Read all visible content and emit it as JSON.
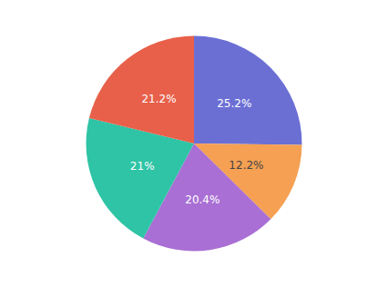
{
  "chart_data": {
    "type": "pie",
    "values": [
      25.2,
      12.2,
      20.4,
      21.0,
      21.2
    ],
    "value_labels": [
      "25.2%",
      "12.2%",
      "20.4%",
      "21%",
      "21.2%"
    ],
    "colors": [
      "#6B6FD4",
      "#F5A053",
      "#A96FD4",
      "#2EC4A5",
      "#E8604A"
    ],
    "data_labels": true
  }
}
